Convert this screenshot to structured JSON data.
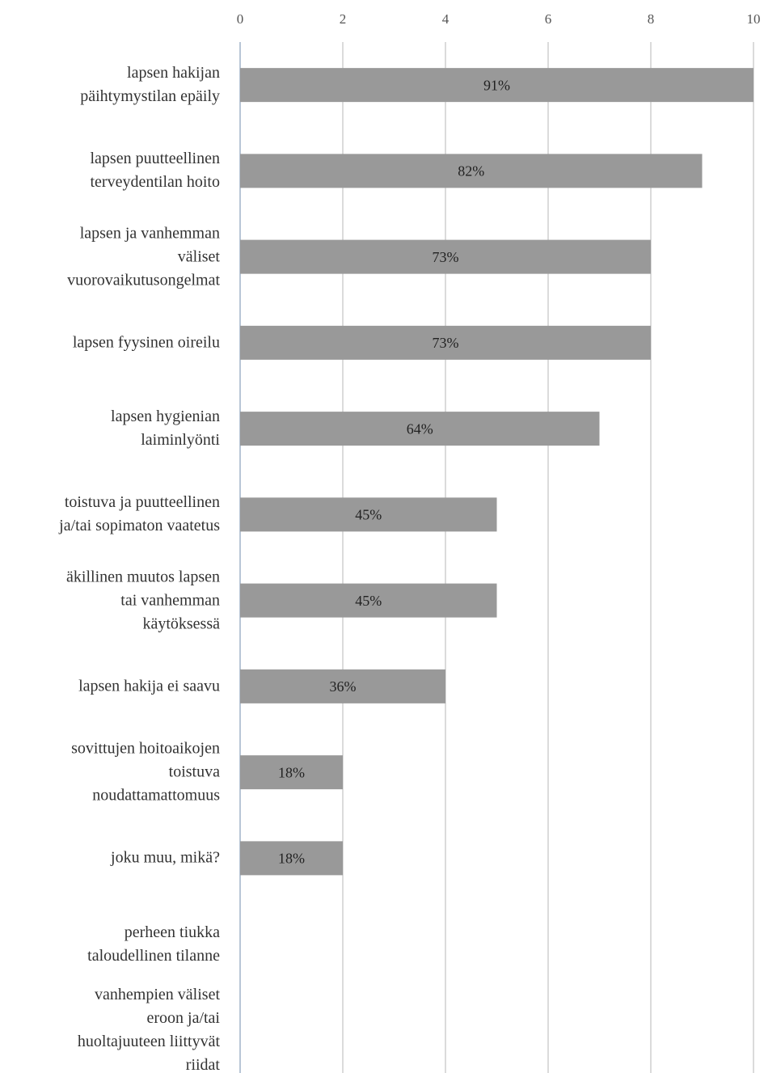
{
  "chart_data": {
    "type": "bar",
    "orientation": "horizontal",
    "categories": [
      "lapsen hakijan\npäihtymystilan epäily",
      "lapsen puutteellinen\nterveydentilan hoito",
      "lapsen ja vanhemman\nväliset\nvuorovaikutusongelmat",
      "lapsen fyysinen oireilu",
      "lapsen hygienian\nlaiminlyönti",
      "toistuva ja puutteellinen\nja/tai sopimaton vaatetus",
      "äkillinen muutos lapsen\ntai vanhemman\nkäytöksessä",
      "lapsen hakija ei saavu",
      "sovittujen hoitoaikojen\ntoistuva\nnoudattamattomuus",
      "joku muu, mikä?",
      "perheen tiukka\ntaloudellinen tilanne",
      "vanhempien väliset\neroon ja/tai\nhuoltajuuteen liittyvät\nriidat"
    ],
    "values": [
      10,
      9,
      8,
      8,
      7,
      5,
      5,
      4,
      2,
      2,
      0,
      0
    ],
    "value_labels": [
      "91%",
      "82%",
      "73%",
      "73%",
      "64%",
      "45%",
      "45%",
      "36%",
      "18%",
      "18%",
      null,
      null
    ],
    "color": "#999999",
    "xlim": [
      0,
      10
    ],
    "xticks": [
      0,
      2,
      4,
      6,
      8,
      10
    ],
    "grid": true
  }
}
